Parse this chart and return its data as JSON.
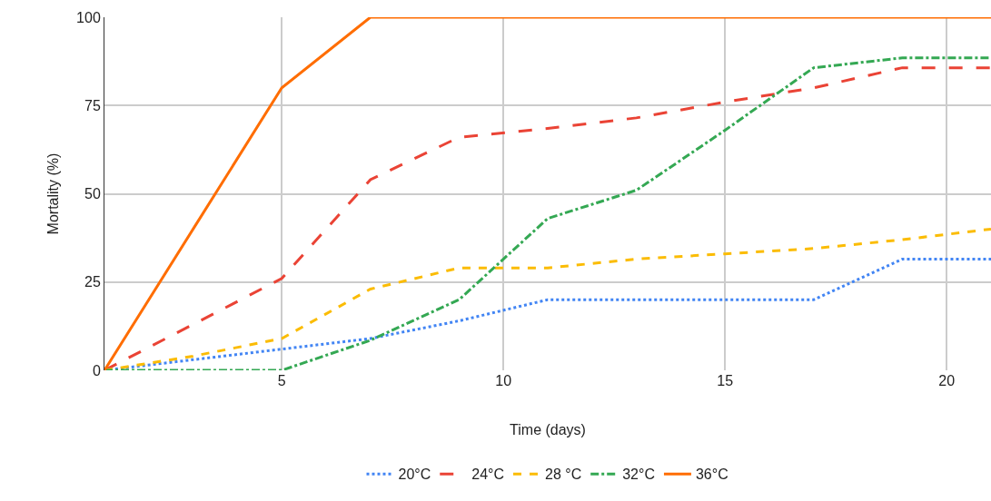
{
  "chart_data": {
    "type": "line",
    "xlabel": "Time (days)",
    "ylabel": "Mortality (%)",
    "x": [
      1,
      3,
      5,
      7,
      9,
      11,
      13,
      15,
      17,
      19,
      21
    ],
    "series": [
      {
        "name": "20°C",
        "color": "#4285f4",
        "line_style": "dotted",
        "values": [
          0,
          3,
          6,
          9,
          14,
          20,
          20,
          20,
          20,
          31.5,
          31.5
        ]
      },
      {
        "name": "24°C",
        "color": "#ea4335",
        "line_style": "longdashed",
        "values": [
          0,
          13,
          26,
          54,
          66,
          68.5,
          71.5,
          76,
          80,
          85.7,
          85.7
        ]
      },
      {
        "name": "28 °C",
        "color": "#fbbc04",
        "line_style": "dashed",
        "values": [
          0,
          4,
          9,
          23,
          29,
          29,
          31.5,
          33,
          34.5,
          37,
          40
        ]
      },
      {
        "name": "32°C",
        "color": "#34a853",
        "line_style": "dashdot",
        "values": [
          0,
          0,
          0,
          8.5,
          20,
          43,
          51,
          68,
          85.7,
          88.5,
          88.5
        ]
      },
      {
        "name": "36°C",
        "color": "#ff6d01",
        "line_style": "solid",
        "values": [
          0,
          40,
          80,
          100,
          100,
          100,
          100,
          100,
          100,
          100,
          100
        ]
      }
    ],
    "xlim": [
      1,
      21
    ],
    "xticks": [
      5,
      10,
      15,
      20
    ],
    "ylim": [
      0,
      100
    ],
    "yticks": [
      0,
      25,
      50,
      75,
      100
    ],
    "grid": true,
    "legend": "bottom",
    "marker": "none"
  }
}
